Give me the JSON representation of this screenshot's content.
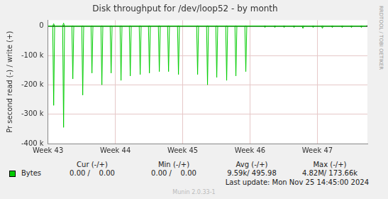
{
  "chart_data": {
    "type": "line",
    "title": "Disk throughput for /dev/loop52 - by month",
    "y_label": "Pr second read (-) / write (+)",
    "x": [
      0,
      0.49,
      0.59,
      0.69,
      1.52,
      1.62,
      1.72,
      2.48,
      2.58,
      2.68,
      3.51,
      3.61,
      3.71,
      4.47,
      4.57,
      4.67,
      5.5,
      5.6,
      5.7,
      6.46,
      6.56,
      6.66,
      7.49,
      7.59,
      7.69,
      8.45,
      8.55,
      8.65,
      9.48,
      9.58,
      9.68,
      10.44,
      10.54,
      10.64,
      11.47,
      11.57,
      11.67,
      12.43,
      12.53,
      12.63,
      13.46,
      13.56,
      13.66,
      15.45,
      15.55,
      15.65,
      16.48,
      16.58,
      16.68,
      17.44,
      17.54,
      17.64,
      18.47,
      18.57,
      18.67,
      19.43,
      19.53,
      19.63,
      20.46,
      20.56,
      20.66,
      22.45,
      22.55,
      22.65,
      23.48,
      23.58,
      23.68,
      24.44,
      24.54,
      24.64,
      25.47,
      25.57,
      25.67,
      26.4,
      26.5,
      26.6,
      27.46,
      27.56,
      27.66,
      28.42,
      28.52,
      28.62,
      29.45,
      29.55,
      29.65,
      30.48,
      30.58,
      30.68,
      31.44,
      31.54,
      31.64,
      32.47,
      32.57,
      32.67,
      33.1
    ],
    "series": [
      {
        "name": "Bytes",
        "color": "#00cc00",
        "values": [
          0,
          0,
          -270000,
          0,
          0,
          -345000,
          0,
          0,
          -180000,
          0,
          0,
          -235000,
          0,
          0,
          -160000,
          0,
          0,
          -200000,
          0,
          0,
          -160000,
          0,
          0,
          -185000,
          0,
          0,
          -170000,
          0,
          0,
          -165000,
          0,
          0,
          -160000,
          0,
          0,
          -155000,
          0,
          0,
          -155000,
          0,
          0,
          -165000,
          0,
          0,
          -165000,
          0,
          0,
          -200000,
          0,
          0,
          -175000,
          0,
          0,
          -185000,
          0,
          0,
          -170000,
          0,
          0,
          -155000,
          0,
          0,
          -5000,
          0,
          0,
          -5000,
          0,
          0,
          -5000,
          0,
          0,
          -5000,
          0,
          0,
          -8000,
          0,
          0,
          -5000,
          0,
          0,
          -8000,
          0,
          0,
          -5000,
          0,
          0,
          -5000,
          0,
          0,
          -5000,
          0,
          0,
          -5000,
          0,
          0
        ]
      },
      {
        "name": "Bytes",
        "color": "#00cc00",
        "values": [
          0,
          0,
          8000,
          0,
          0,
          10000,
          0,
          0,
          0,
          0,
          0,
          0,
          0,
          0,
          0,
          0,
          0,
          0,
          0,
          0,
          0,
          0,
          0,
          0,
          0,
          0,
          0,
          0,
          0,
          0,
          0,
          0,
          0,
          0,
          0,
          0,
          0,
          0,
          0,
          0,
          0,
          0,
          0,
          0,
          0,
          0,
          0,
          0,
          0,
          0,
          0,
          0,
          0,
          0,
          0,
          0,
          0,
          0,
          0,
          0,
          0,
          0,
          0,
          0,
          0,
          0,
          0,
          0,
          0,
          0,
          0,
          0,
          0,
          0,
          0,
          0,
          0,
          0,
          0,
          0,
          0,
          0,
          0,
          0,
          0,
          0,
          0,
          0,
          0,
          0,
          0,
          0,
          0,
          0,
          0
        ]
      }
    ],
    "xlim": [
      0,
      33.2
    ],
    "xticks": [
      {
        "value": 0,
        "label": "Week 43"
      },
      {
        "value": 7,
        "label": "Week 44"
      },
      {
        "value": 14,
        "label": "Week 45"
      },
      {
        "value": 21,
        "label": "Week 46"
      },
      {
        "value": 28,
        "label": "Week 47"
      }
    ],
    "ylim": [
      -400000,
      20000
    ],
    "yticks": [
      {
        "value": -400000,
        "label": "-400 k"
      },
      {
        "value": -300000,
        "label": "-300 k"
      },
      {
        "value": -200000,
        "label": "-200 k"
      },
      {
        "value": -100000,
        "label": "-100 k"
      },
      0
    ],
    "grid": true,
    "legend_table": {
      "headers": [
        "Cur (-/+)",
        "Min (-/+)",
        "Avg (-/+)",
        "Max (-/+)"
      ],
      "cells": [
        "0.00 /    0.00",
        "0.00 /    0.00",
        "9.59k/ 495.98",
        "4.82M/ 173.66k"
      ]
    },
    "last_update": "Last update: Mon Nov 25 14:45:00 2024",
    "footer": "Munin 2.0.33-1",
    "watermark": "RRDTOOL / TOBI OETIKER"
  }
}
